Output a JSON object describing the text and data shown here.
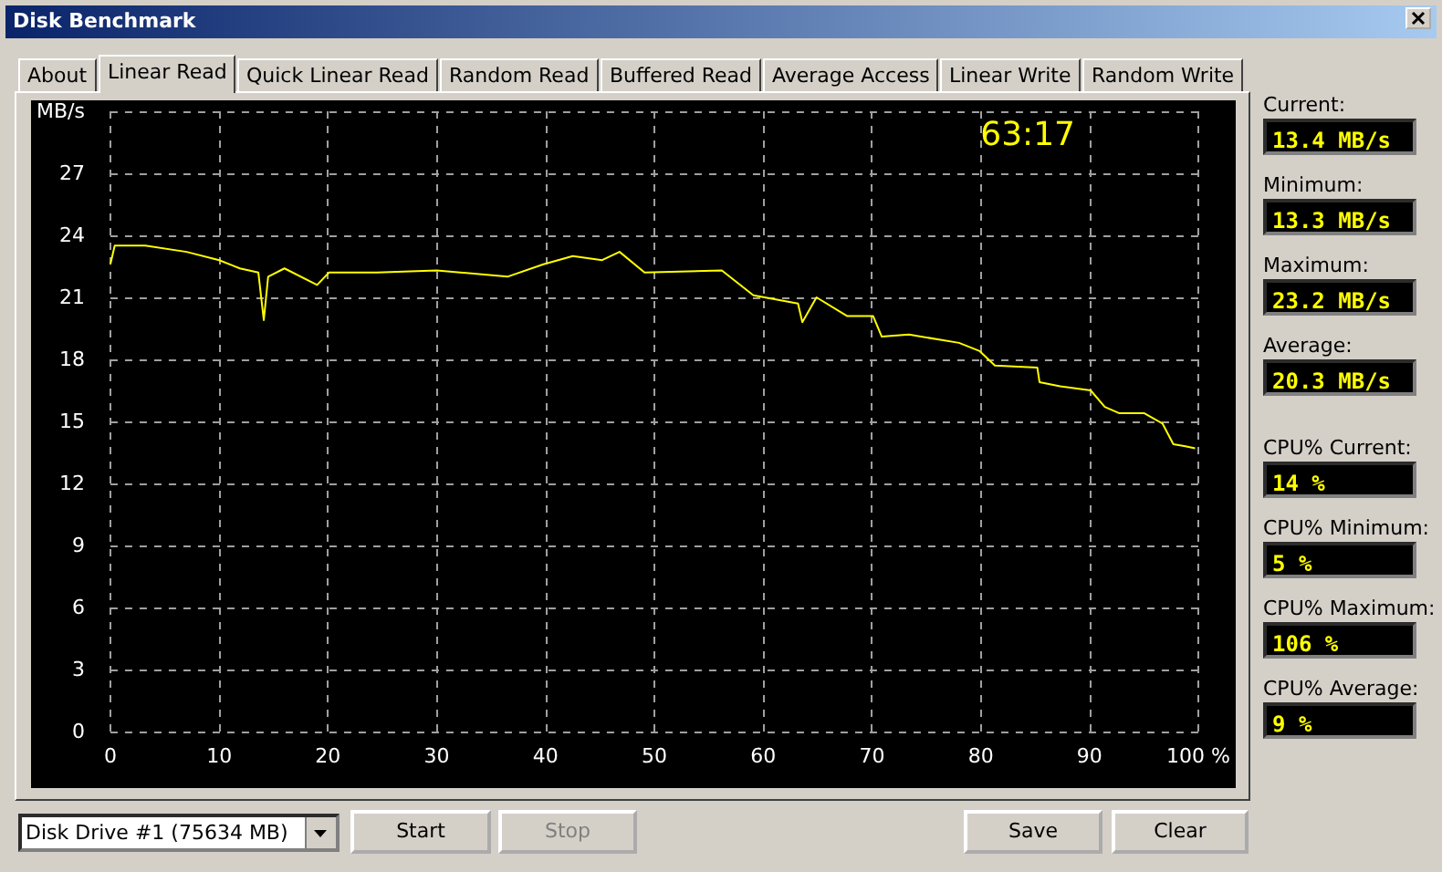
{
  "chart_data": [
    {
      "type": "line",
      "title": "Disk Benchmark",
      "annotations": [
        "63:17"
      ],
      "x": [
        0,
        0.4,
        3.2,
        7,
        10,
        11.9,
        13.6,
        14.1,
        14.5,
        16,
        19,
        20.1,
        24.5,
        30,
        36.5,
        39.8,
        42.5,
        45.2,
        46.8,
        49.1,
        56.2,
        59.1,
        63.2,
        63.6,
        64.9,
        67.7,
        70.1,
        70.9,
        73.4,
        78,
        79.9,
        81.3,
        85.2,
        85.4,
        87.3,
        90.1,
        91.4,
        92.7,
        95,
        96.7,
        97.7,
        98.8,
        99.7
      ],
      "series": [
        {
          "color": "#ffff00",
          "values": [
            22.6,
            23.5,
            23.5,
            23.2,
            22.8,
            22.4,
            22.2,
            19.9,
            22.0,
            22.4,
            21.6,
            22.2,
            22.2,
            22.3,
            22.0,
            22.6,
            23.0,
            22.8,
            23.2,
            22.2,
            22.3,
            21.1,
            20.7,
            19.8,
            21.0,
            20.1,
            20.1,
            19.1,
            19.2,
            18.8,
            18.4,
            17.7,
            17.6,
            16.9,
            16.7,
            16.5,
            15.7,
            15.4,
            15.4,
            14.9,
            13.9,
            13.8,
            13.7
          ]
        }
      ],
      "xlim": [
        0,
        100
      ],
      "xticks": [
        0,
        10,
        20,
        30,
        40,
        50,
        60,
        70,
        80,
        90,
        {
          "value": 100,
          "label": "100 %"
        }
      ],
      "ylim": [
        0,
        30
      ],
      "yticks": [
        0,
        3,
        6,
        9,
        12,
        15,
        18,
        21,
        24,
        27,
        {
          "value": 30,
          "label": "MB/s"
        }
      ],
      "grid": true,
      "marker": "none",
      "line_style": "solid"
    },
    {
      "type": "other",
      "annotations": [
        "Current:",
        "13.4 MB/s",
        "Minimum:",
        "13.3 MB/s",
        "Maximum:",
        "23.2 MB/s",
        "Average:",
        "20.3 MB/s",
        "CPU% Current:",
        "14 %",
        "CPU% Minimum:",
        "5 %",
        "CPU% Maximum:",
        "106 %",
        "CPU% Average:",
        "9 %"
      ]
    },
    {
      "type": "other",
      "annotations": [
        "About",
        "Linear Read",
        "Quick Linear Read",
        "Random Read",
        "Buffered Read",
        "Average Access",
        "Linear Write",
        "Random Write"
      ]
    },
    {
      "type": "other",
      "annotations": [
        "Disk Drive #1  (75634 MB)",
        "Start",
        "Stop",
        "Save",
        "Clear"
      ]
    }
  ]
}
